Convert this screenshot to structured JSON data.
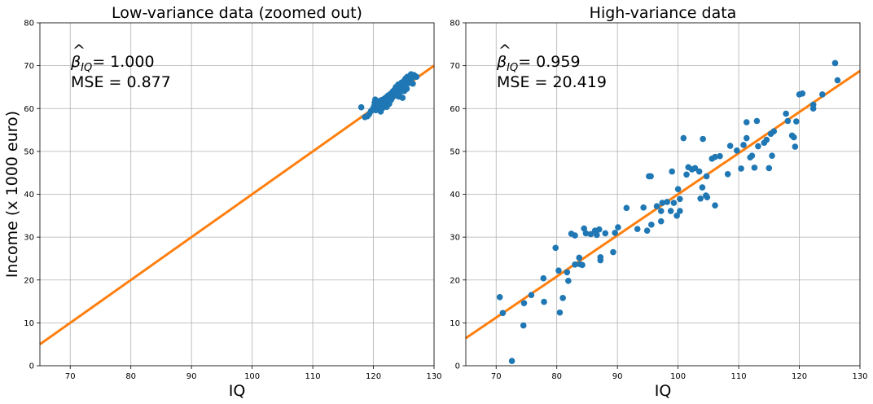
{
  "chart_data": [
    {
      "type": "scatter",
      "title": "Low-variance data (zoomed out)",
      "xlabel": "IQ",
      "ylabel": "Income (x 1000 euro)",
      "xlim": [
        65,
        130
      ],
      "ylim": [
        0,
        80
      ],
      "xticks": [
        70,
        80,
        90,
        100,
        110,
        120,
        130
      ],
      "yticks": [
        0,
        10,
        20,
        30,
        40,
        50,
        60,
        70,
        80
      ],
      "grid": true,
      "annotation": {
        "beta_symbol": "β",
        "beta_subscript": "IQ",
        "beta_value": "= 1.000",
        "mse": "MSE = 0.877"
      },
      "point_color": "#1f77b4",
      "line_color": "#ff7f0e",
      "fit_line": {
        "slope": 1.0,
        "intercept": -60.0
      },
      "points": [
        [
          118.0,
          60.3
        ],
        [
          118.6,
          58.0
        ],
        [
          119.0,
          58.2
        ],
        [
          119.3,
          58.7
        ],
        [
          119.6,
          59.4
        ],
        [
          119.9,
          59.9
        ],
        [
          120.1,
          60.5
        ],
        [
          120.2,
          61.4
        ],
        [
          120.3,
          62.1
        ],
        [
          120.4,
          59.6
        ],
        [
          120.6,
          60.2
        ],
        [
          120.8,
          61.0
        ],
        [
          121.0,
          60.6
        ],
        [
          121.1,
          61.8
        ],
        [
          121.2,
          59.3
        ],
        [
          121.4,
          62.0
        ],
        [
          121.5,
          60.1
        ],
        [
          121.6,
          61.2
        ],
        [
          121.8,
          62.3
        ],
        [
          121.9,
          60.7
        ],
        [
          122.0,
          61.5
        ],
        [
          122.1,
          62.6
        ],
        [
          122.2,
          60.4
        ],
        [
          122.3,
          61.9
        ],
        [
          122.4,
          63.0
        ],
        [
          122.5,
          62.2
        ],
        [
          122.6,
          61.1
        ],
        [
          122.7,
          62.8
        ],
        [
          122.8,
          63.4
        ],
        [
          122.9,
          62.0
        ],
        [
          123.0,
          63.1
        ],
        [
          123.1,
          62.5
        ],
        [
          123.2,
          64.0
        ],
        [
          123.3,
          62.9
        ],
        [
          123.4,
          63.6
        ],
        [
          123.5,
          64.4
        ],
        [
          123.6,
          63.3
        ],
        [
          123.7,
          65.0
        ],
        [
          123.8,
          64.2
        ],
        [
          123.9,
          63.0
        ],
        [
          124.0,
          64.8
        ],
        [
          124.1,
          65.6
        ],
        [
          124.2,
          62.8
        ],
        [
          124.3,
          64.5
        ],
        [
          124.4,
          65.2
        ],
        [
          124.5,
          63.9
        ],
        [
          124.6,
          66.0
        ],
        [
          124.7,
          64.9
        ],
        [
          124.8,
          62.5
        ],
        [
          124.9,
          65.5
        ],
        [
          125.0,
          66.4
        ],
        [
          125.1,
          64.1
        ],
        [
          125.2,
          65.8
        ],
        [
          125.3,
          67.0
        ],
        [
          125.4,
          66.2
        ],
        [
          125.5,
          64.6
        ],
        [
          125.6,
          67.4
        ],
        [
          125.7,
          65.9
        ],
        [
          125.8,
          66.8
        ],
        [
          126.0,
          67.6
        ],
        [
          126.1,
          66.0
        ],
        [
          126.2,
          68.0
        ],
        [
          126.4,
          67.2
        ],
        [
          126.5,
          65.8
        ],
        [
          126.7,
          67.8
        ],
        [
          127.1,
          67.4
        ]
      ]
    },
    {
      "type": "scatter",
      "title": "High-variance data",
      "xlabel": "IQ",
      "ylabel": "",
      "xlim": [
        65,
        130
      ],
      "ylim": [
        0,
        80
      ],
      "xticks": [
        70,
        80,
        90,
        100,
        110,
        120,
        130
      ],
      "yticks": [
        0,
        10,
        20,
        30,
        40,
        50,
        60,
        70,
        80
      ],
      "grid": true,
      "annotation": {
        "beta_symbol": "β",
        "beta_subscript": "IQ",
        "beta_value": "= 0.959",
        "mse": "MSE = 20.419"
      },
      "point_color": "#1f77b4",
      "line_color": "#ff7f0e",
      "fit_line": {
        "slope": 0.959,
        "intercept": -55.9
      },
      "points": [
        [
          70.6,
          16.0
        ],
        [
          71.1,
          12.3
        ],
        [
          72.6,
          1.1
        ],
        [
          74.5,
          9.4
        ],
        [
          74.6,
          14.6
        ],
        [
          75.8,
          16.5
        ],
        [
          77.8,
          20.4
        ],
        [
          77.9,
          14.9
        ],
        [
          79.8,
          27.5
        ],
        [
          80.3,
          22.2
        ],
        [
          80.5,
          12.4
        ],
        [
          81.0,
          15.8
        ],
        [
          81.7,
          21.8
        ],
        [
          81.9,
          19.8
        ],
        [
          82.4,
          30.8
        ],
        [
          83.0,
          30.4
        ],
        [
          83.0,
          23.6
        ],
        [
          83.7,
          25.2
        ],
        [
          83.8,
          23.7
        ],
        [
          84.2,
          23.5
        ],
        [
          84.5,
          32.0
        ],
        [
          84.8,
          30.9
        ],
        [
          85.6,
          30.7
        ],
        [
          86.3,
          31.5
        ],
        [
          86.6,
          30.5
        ],
        [
          87.0,
          31.8
        ],
        [
          87.2,
          25.3
        ],
        [
          87.2,
          24.6
        ],
        [
          88.0,
          30.9
        ],
        [
          89.3,
          26.5
        ],
        [
          89.6,
          31.0
        ],
        [
          90.1,
          32.3
        ],
        [
          91.5,
          36.8
        ],
        [
          93.3,
          31.9
        ],
        [
          94.3,
          36.9
        ],
        [
          94.9,
          31.5
        ],
        [
          95.2,
          44.2
        ],
        [
          95.5,
          44.2
        ],
        [
          95.6,
          32.9
        ],
        [
          96.5,
          37.2
        ],
        [
          97.2,
          33.7
        ],
        [
          97.2,
          36.1
        ],
        [
          97.4,
          38.0
        ],
        [
          98.2,
          38.2
        ],
        [
          98.8,
          36.1
        ],
        [
          99.0,
          45.3
        ],
        [
          99.3,
          38.0
        ],
        [
          99.8,
          35.0
        ],
        [
          100.0,
          41.2
        ],
        [
          100.3,
          36.1
        ],
        [
          100.3,
          38.9
        ],
        [
          100.9,
          53.1
        ],
        [
          101.4,
          44.6
        ],
        [
          101.7,
          46.3
        ],
        [
          102.3,
          45.8
        ],
        [
          102.8,
          46.1
        ],
        [
          103.5,
          45.3
        ],
        [
          103.7,
          39.0
        ],
        [
          104.0,
          41.6
        ],
        [
          104.1,
          52.9
        ],
        [
          104.6,
          39.7
        ],
        [
          104.7,
          44.2
        ],
        [
          104.8,
          39.3
        ],
        [
          105.6,
          48.3
        ],
        [
          106.1,
          48.7
        ],
        [
          106.1,
          37.4
        ],
        [
          106.9,
          48.9
        ],
        [
          108.2,
          44.7
        ],
        [
          108.6,
          51.3
        ],
        [
          109.7,
          50.2
        ],
        [
          110.4,
          46.0
        ],
        [
          110.8,
          51.5
        ],
        [
          111.3,
          56.8
        ],
        [
          111.3,
          53.1
        ],
        [
          111.9,
          48.6
        ],
        [
          112.2,
          49.0
        ],
        [
          112.6,
          46.2
        ],
        [
          113.0,
          57.1
        ],
        [
          113.2,
          51.2
        ],
        [
          114.2,
          52.0
        ],
        [
          114.6,
          52.7
        ],
        [
          115.0,
          46.1
        ],
        [
          115.3,
          54.1
        ],
        [
          115.5,
          49.0
        ],
        [
          115.8,
          54.7
        ],
        [
          117.8,
          58.8
        ],
        [
          118.1,
          57.1
        ],
        [
          118.8,
          53.7
        ],
        [
          119.1,
          53.3
        ],
        [
          119.3,
          51.1
        ],
        [
          119.5,
          57.0
        ],
        [
          120.0,
          63.3
        ],
        [
          120.5,
          63.5
        ],
        [
          122.3,
          60.0
        ],
        [
          122.3,
          60.9
        ],
        [
          123.8,
          63.3
        ],
        [
          125.9,
          70.6
        ],
        [
          126.3,
          66.6
        ]
      ]
    }
  ]
}
